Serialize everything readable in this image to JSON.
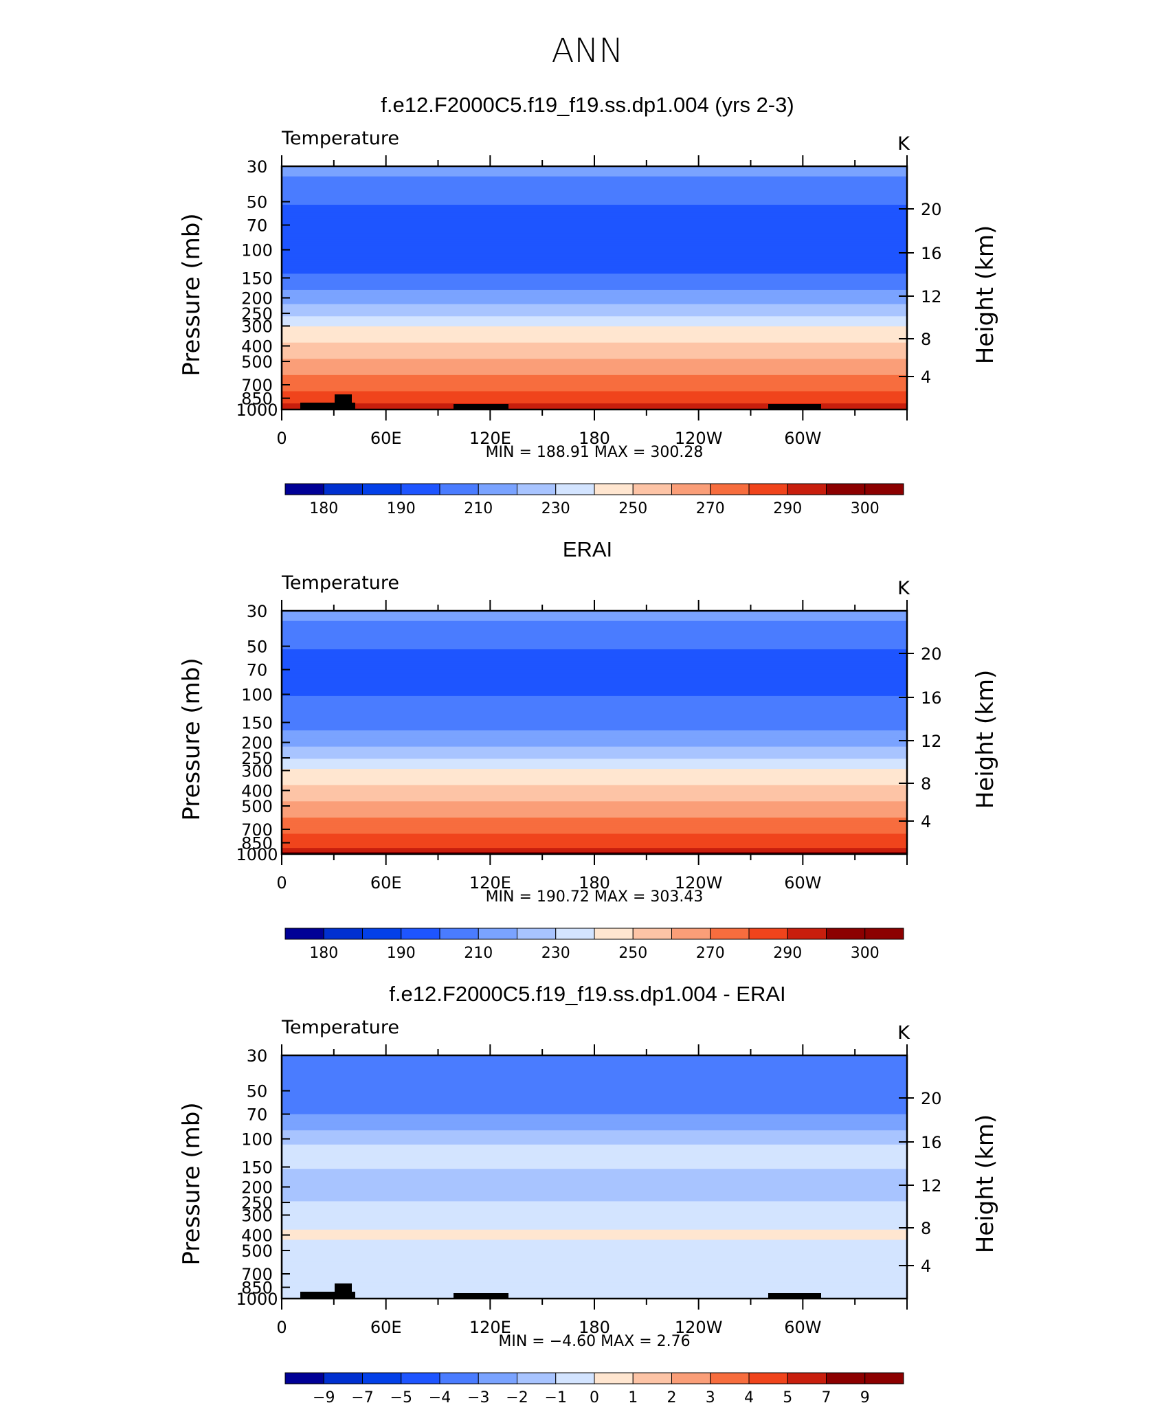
{
  "figure": {
    "main_title": "ANN"
  },
  "chart_data": [
    {
      "type": "heatmap",
      "panel_title": "f.e12.F2000C5.f19_f19.ss.dp1.004 (yrs 2-3)",
      "variable": "Temperature",
      "units": "K",
      "ylabel": "Pressure (mb)",
      "y2label": "Height (km)",
      "xticks": [
        "0",
        "60E",
        "120E",
        "180",
        "120W",
        "60W"
      ],
      "yticks": [
        "30",
        "50",
        "70",
        "100",
        "150",
        "200",
        "250",
        "300",
        "400",
        "500",
        "700",
        "850",
        "1000"
      ],
      "y2ticks": [
        "20",
        "16",
        "12",
        "8",
        "4"
      ],
      "ylim": [
        1000,
        30
      ],
      "ylog": true,
      "min": "188.91",
      "max": "300.28",
      "stats_text": "MIN = 188.91 MAX = 300.28",
      "colorbar_labels": [
        "180",
        "190",
        "210",
        "230",
        "250",
        "270",
        "290",
        "300"
      ],
      "colorbar_levels": [
        180,
        185,
        190,
        200,
        210,
        220,
        230,
        240,
        250,
        260,
        270,
        280,
        290,
        295,
        300
      ],
      "profile": [
        {
          "p": 30,
          "T": 215
        },
        {
          "p": 40,
          "T": 205
        },
        {
          "p": 70,
          "T": 195
        },
        {
          "p": 120,
          "T": 195
        },
        {
          "p": 150,
          "T": 202
        },
        {
          "p": 200,
          "T": 215
        },
        {
          "p": 250,
          "T": 228
        },
        {
          "p": 300,
          "T": 240
        },
        {
          "p": 400,
          "T": 252
        },
        {
          "p": 500,
          "T": 262
        },
        {
          "p": 700,
          "T": 275
        },
        {
          "p": 850,
          "T": 285
        },
        {
          "p": 1000,
          "T": 295
        }
      ]
    },
    {
      "type": "heatmap",
      "panel_title": "ERAI",
      "variable": "Temperature",
      "units": "K",
      "ylabel": "Pressure (mb)",
      "y2label": "Height (km)",
      "xticks": [
        "0",
        "60E",
        "120E",
        "180",
        "120W",
        "60W"
      ],
      "yticks": [
        "30",
        "50",
        "70",
        "100",
        "150",
        "200",
        "250",
        "300",
        "400",
        "500",
        "700",
        "850",
        "1000"
      ],
      "y2ticks": [
        "20",
        "16",
        "12",
        "8",
        "4"
      ],
      "ylim": [
        1000,
        30
      ],
      "ylog": true,
      "min": "190.72",
      "max": "303.43",
      "stats_text": "MIN = 190.72 MAX = 303.43",
      "colorbar_labels": [
        "180",
        "190",
        "210",
        "230",
        "250",
        "270",
        "290",
        "300"
      ],
      "colorbar_levels": [
        180,
        185,
        190,
        200,
        210,
        220,
        230,
        240,
        250,
        260,
        270,
        280,
        290,
        295,
        300
      ],
      "profile": [
        {
          "p": 30,
          "T": 215
        },
        {
          "p": 40,
          "T": 205
        },
        {
          "p": 70,
          "T": 195
        },
        {
          "p": 150,
          "T": 205
        },
        {
          "p": 200,
          "T": 217
        },
        {
          "p": 250,
          "T": 229
        },
        {
          "p": 300,
          "T": 241
        },
        {
          "p": 400,
          "T": 253
        },
        {
          "p": 500,
          "T": 263
        },
        {
          "p": 700,
          "T": 276
        },
        {
          "p": 850,
          "T": 286
        },
        {
          "p": 1000,
          "T": 296
        }
      ]
    },
    {
      "type": "heatmap",
      "panel_title": "f.e12.F2000C5.f19_f19.ss.dp1.004 - ERAI",
      "variable": "Temperature",
      "units": "K",
      "ylabel": "Pressure (mb)",
      "y2label": "Height (km)",
      "xticks": [
        "0",
        "60E",
        "120E",
        "180",
        "120W",
        "60W"
      ],
      "yticks": [
        "30",
        "50",
        "70",
        "100",
        "150",
        "200",
        "250",
        "300",
        "400",
        "500",
        "700",
        "850",
        "1000"
      ],
      "y2ticks": [
        "20",
        "16",
        "12",
        "8",
        "4"
      ],
      "ylim": [
        1000,
        30
      ],
      "ylog": true,
      "min": "−4.60",
      "max": "2.76",
      "stats_text": "MIN = −4.60 MAX = 2.76",
      "colorbar_labels": [
        "−9",
        "−7",
        "−5",
        "−4",
        "−3",
        "−2",
        "−1",
        "0",
        "1",
        "2",
        "3",
        "4",
        "5",
        "7",
        "9"
      ],
      "colorbar_levels": [
        -9,
        -7,
        -5,
        -4,
        -3,
        -2,
        -1,
        0,
        1,
        2,
        3,
        4,
        5,
        7,
        9
      ],
      "profile": [
        {
          "p": 30,
          "T": -3.5
        },
        {
          "p": 60,
          "T": -3.5
        },
        {
          "p": 80,
          "T": -2.5
        },
        {
          "p": 120,
          "T": -0.5
        },
        {
          "p": 200,
          "T": -1.5
        },
        {
          "p": 300,
          "T": -0.5
        },
        {
          "p": 400,
          "T": 0.2
        },
        {
          "p": 500,
          "T": -0.5
        },
        {
          "p": 700,
          "T": -0.7
        },
        {
          "p": 850,
          "T": -0.5
        },
        {
          "p": 1000,
          "T": -0.3
        }
      ]
    }
  ],
  "colors": {
    "temp_scale": [
      "#000096",
      "#0030d0",
      "#0340e8",
      "#1e55ff",
      "#4a7cff",
      "#7aa3ff",
      "#a8c4ff",
      "#d3e4ff",
      "#ffe6d0",
      "#fdc4a6",
      "#fa9e78",
      "#f76d3e",
      "#f0441c",
      "#c81e0d",
      "#8c0000"
    ],
    "diff_scale": [
      "#000096",
      "#0030d0",
      "#0340e8",
      "#1e55ff",
      "#4a7cff",
      "#7aa3ff",
      "#a8c4ff",
      "#d3e4ff",
      "#ffe6d0",
      "#fdc4a6",
      "#fa9e78",
      "#f76d3e",
      "#f0441c",
      "#c81e0d",
      "#8c0000"
    ]
  }
}
